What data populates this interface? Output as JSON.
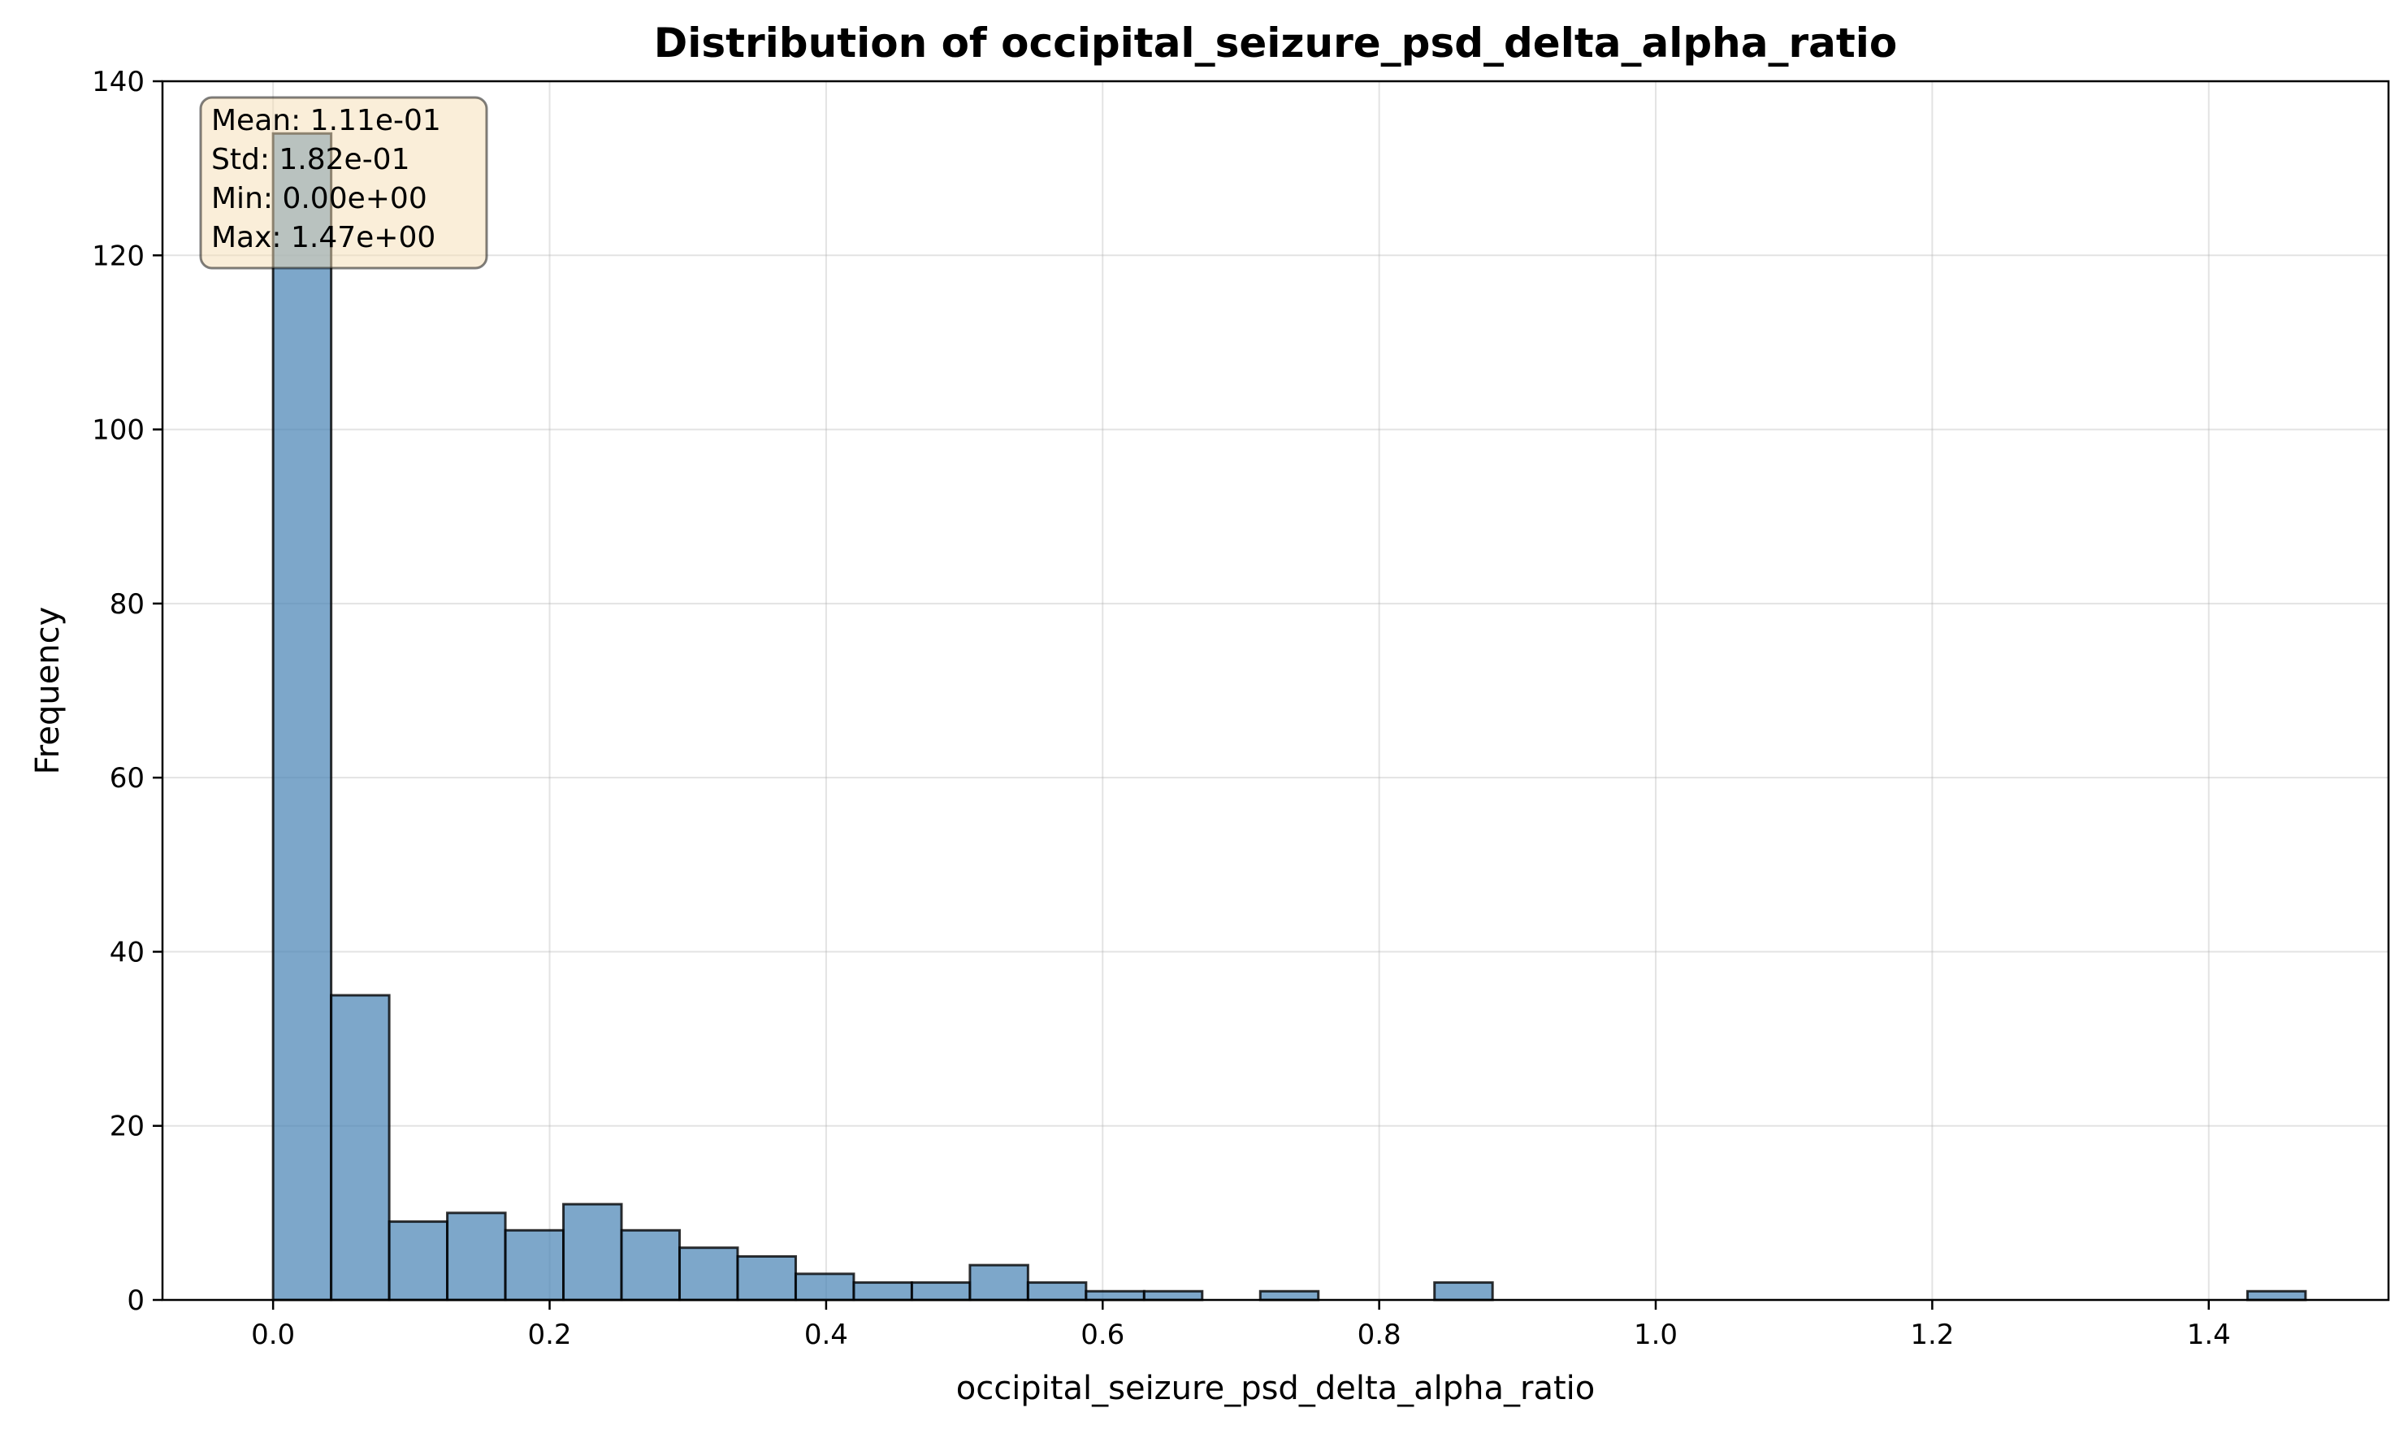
{
  "chart_data": {
    "type": "bar",
    "title": "Distribution of occipital_seizure_psd_delta_alpha_ratio",
    "xlabel": "occipital_seizure_psd_delta_alpha_ratio",
    "ylabel": "Frequency",
    "xlim": [
      -0.08,
      1.53
    ],
    "ylim": [
      0,
      140
    ],
    "xticks": [
      0.0,
      0.2,
      0.4,
      0.6,
      0.8,
      1.0,
      1.2,
      1.4
    ],
    "xtick_labels": [
      "0.0",
      "0.2",
      "0.4",
      "0.6",
      "0.8",
      "1.0",
      "1.2",
      "1.4"
    ],
    "yticks": [
      0,
      20,
      40,
      60,
      80,
      100,
      120,
      140
    ],
    "ytick_labels": [
      "0",
      "20",
      "40",
      "60",
      "80",
      "100",
      "120",
      "140"
    ],
    "grid": true,
    "bin_range": [
      0.0,
      1.47
    ],
    "bin_count": 35,
    "counts": [
      134,
      35,
      9,
      10,
      8,
      11,
      8,
      6,
      5,
      3,
      2,
      2,
      4,
      2,
      1,
      1,
      0,
      1,
      0,
      0,
      2,
      0,
      0,
      0,
      0,
      0,
      0,
      0,
      0,
      0,
      0,
      0,
      0,
      0,
      1
    ],
    "bar_color": "#4682b4",
    "edge_color": "#000000",
    "stats_box": {
      "placement": "top-left",
      "lines": [
        "Mean: 1.11e-01",
        "Std: 1.82e-01",
        "Min: 0.00e+00",
        "Max: 1.47e+00"
      ],
      "background": "#f5deb3",
      "border": "#000000"
    }
  }
}
